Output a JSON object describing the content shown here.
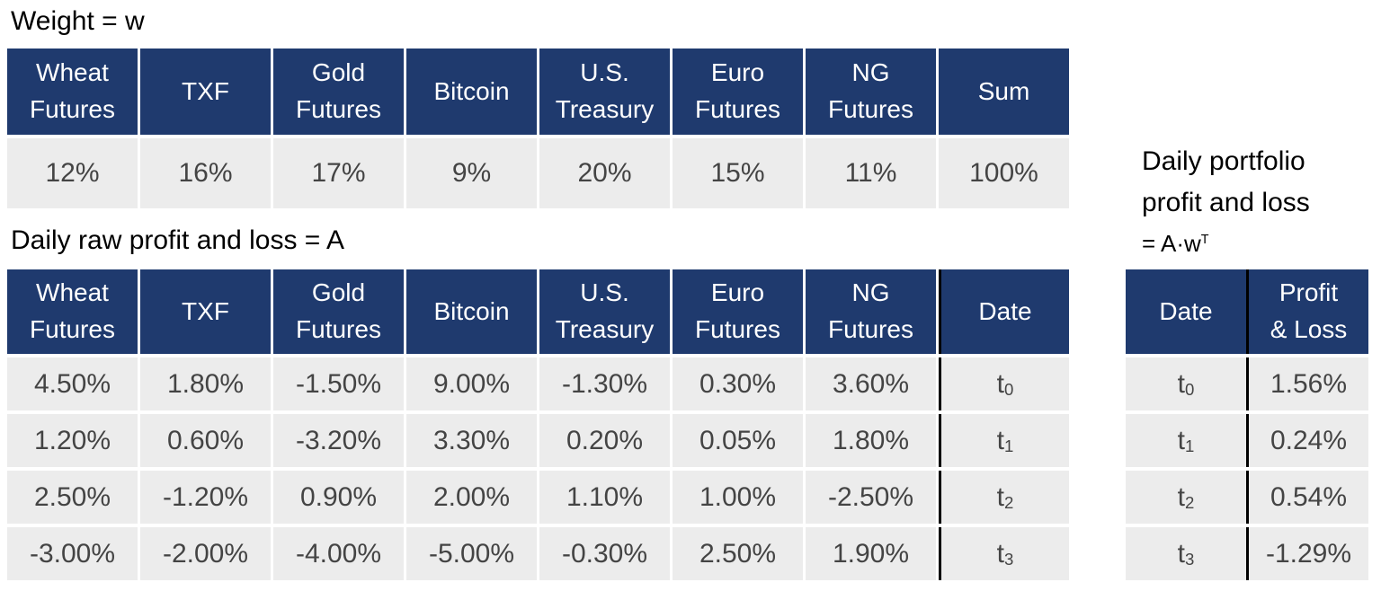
{
  "weights": {
    "title": "Weight = w",
    "headers": [
      [
        "Wheat",
        "Futures"
      ],
      [
        "TXF"
      ],
      [
        "Gold",
        "Futures"
      ],
      [
        "Bitcoin"
      ],
      [
        "U.S.",
        "Treasury"
      ],
      [
        "Euro",
        "Futures"
      ],
      [
        "NG",
        "Futures"
      ],
      [
        "Sum"
      ]
    ],
    "values": [
      "12%",
      "16%",
      "17%",
      "9%",
      "20%",
      "15%",
      "11%",
      "100%"
    ]
  },
  "raw_pnl": {
    "title": "Daily raw profit and loss = A",
    "headers": [
      [
        "Wheat",
        "Futures"
      ],
      [
        "TXF"
      ],
      [
        "Gold",
        "Futures"
      ],
      [
        "Bitcoin"
      ],
      [
        "U.S.",
        "Treasury"
      ],
      [
        "Euro",
        "Futures"
      ],
      [
        "NG",
        "Futures"
      ],
      [
        "Date"
      ]
    ],
    "rows": [
      {
        "values": [
          "4.50%",
          "1.80%",
          "-1.50%",
          "9.00%",
          "-1.30%",
          "0.30%",
          "3.60%"
        ],
        "date_base": "t",
        "date_sub": "0"
      },
      {
        "values": [
          "1.20%",
          "0.60%",
          "-3.20%",
          "3.30%",
          "0.20%",
          "0.05%",
          "1.80%"
        ],
        "date_base": "t",
        "date_sub": "1"
      },
      {
        "values": [
          "2.50%",
          "-1.20%",
          "0.90%",
          "2.00%",
          "1.10%",
          "1.00%",
          "-2.50%"
        ],
        "date_base": "t",
        "date_sub": "2"
      },
      {
        "values": [
          "-3.00%",
          "-2.00%",
          "-4.00%",
          "-5.00%",
          "-0.30%",
          "2.50%",
          "1.90%"
        ],
        "date_base": "t",
        "date_sub": "3"
      }
    ]
  },
  "portfolio": {
    "title_line1": "Daily portfolio",
    "title_line2": "profit and loss",
    "title_line3_prefix": "= A·w",
    "title_line3_sup": "T",
    "headers": [
      [
        "Date"
      ],
      [
        "Profit",
        "& Loss"
      ]
    ],
    "rows": [
      {
        "date_base": "t",
        "date_sub": "0",
        "value": "1.56%"
      },
      {
        "date_base": "t",
        "date_sub": "1",
        "value": "0.24%"
      },
      {
        "date_base": "t",
        "date_sub": "2",
        "value": "0.54%"
      },
      {
        "date_base": "t",
        "date_sub": "3",
        "value": "-1.29%"
      }
    ]
  },
  "colors": {
    "header_bg": "#1f3a6e",
    "header_text": "#ffffff",
    "cell_bg": "#ececec",
    "cell_text": "#444444"
  }
}
